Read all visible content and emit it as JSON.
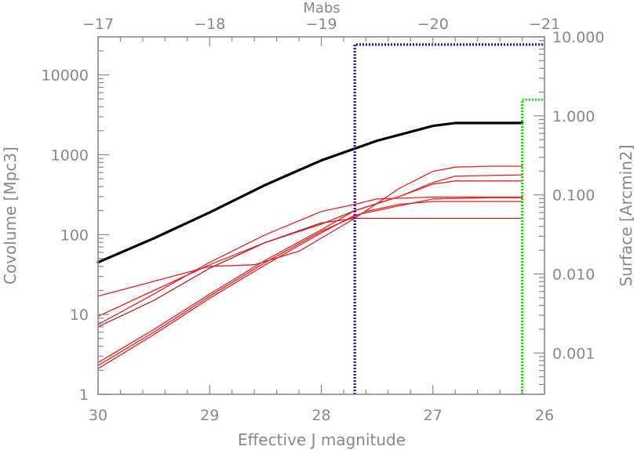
{
  "chart_data": {
    "type": "line",
    "title": "",
    "xlabel": "Effective J magnitude",
    "ylabel": "Covolume [Mpc3]",
    "top_xlabel": "Mabs",
    "right_ylabel": "Surface [Arcmin2]",
    "x_range": [
      30,
      26
    ],
    "y_range": [
      1,
      30000
    ],
    "y_scale": "log",
    "top_x_range": [
      -17,
      -21
    ],
    "right_y_range": [
      0.0003,
      10.0
    ],
    "right_y_scale": "log",
    "grid": false,
    "x_ticks": [
      {
        "value": 30,
        "label": "30"
      },
      {
        "value": 29,
        "label": "29"
      },
      {
        "value": 28,
        "label": "28"
      },
      {
        "value": 27,
        "label": "27"
      },
      {
        "value": 26,
        "label": "26"
      }
    ],
    "y_ticks": [
      {
        "value": 1,
        "label": "1"
      },
      {
        "value": 10,
        "label": "10"
      },
      {
        "value": 100,
        "label": "100"
      },
      {
        "value": 1000,
        "label": "1000"
      },
      {
        "value": 10000,
        "label": "10000"
      }
    ],
    "top_x_ticks": [
      {
        "value": -17,
        "label": "−17"
      },
      {
        "value": -18,
        "label": "−18"
      },
      {
        "value": -19,
        "label": "−19"
      },
      {
        "value": -20,
        "label": "−20"
      },
      {
        "value": -21,
        "label": "−21"
      }
    ],
    "right_y_ticks": [
      {
        "value": 0.001,
        "label": "0.001"
      },
      {
        "value": 0.01,
        "label": "0.010"
      },
      {
        "value": 0.1,
        "label": "0.100"
      },
      {
        "value": 1.0,
        "label": "1.000"
      },
      {
        "value": 10.0,
        "label": "10.000"
      }
    ],
    "series": [
      {
        "color": "#000000",
        "width": 3.2,
        "x": [
          30.0,
          29.5,
          29.0,
          28.5,
          28.0,
          27.5,
          27.0,
          26.8,
          26.5,
          26.2
        ],
        "y": [
          45,
          90,
          190,
          420,
          850,
          1500,
          2300,
          2500,
          2500,
          2500
        ]
      },
      {
        "color": "#e82020",
        "width": 1.3,
        "x": [
          30.0,
          29.5,
          29.0,
          28.6,
          28.2,
          27.7,
          27.3,
          27.0,
          26.8,
          26.5,
          26.2
        ],
        "y": [
          17,
          26,
          40,
          42,
          62,
          160,
          380,
          620,
          700,
          720,
          720
        ]
      },
      {
        "color": "#e82020",
        "width": 1.3,
        "x": [
          30.0,
          29.5,
          29.0,
          28.5,
          28.0,
          27.7,
          27.3,
          27.0,
          26.8,
          26.5,
          26.2
        ],
        "y": [
          9.5,
          20,
          42,
          80,
          135,
          200,
          300,
          450,
          540,
          550,
          560
        ]
      },
      {
        "color": "#e82020",
        "width": 1.3,
        "x": [
          30.0,
          29.5,
          29.0,
          28.5,
          28.0,
          27.7,
          27.5,
          27.0,
          26.5,
          26.2
        ],
        "y": [
          7.5,
          18,
          45,
          100,
          195,
          240,
          280,
          295,
          295,
          295
        ]
      },
      {
        "color": "#b0202a",
        "width": 1.3,
        "x": [
          30.0,
          29.5,
          29.0,
          28.5,
          28.0,
          27.7,
          27.0,
          26.5,
          26.2
        ],
        "y": [
          7.0,
          15,
          38,
          80,
          140,
          160,
          160,
          160,
          160
        ]
      },
      {
        "color": "#e82020",
        "width": 1.3,
        "x": [
          30.0,
          29.5,
          29.0,
          28.5,
          28.0,
          27.7,
          27.3,
          27.0,
          26.8,
          26.5,
          26.2
        ],
        "y": [
          2.5,
          6.5,
          18,
          48,
          115,
          200,
          300,
          430,
          470,
          470,
          470
        ]
      },
      {
        "color": "#e82020",
        "width": 1.3,
        "x": [
          30.0,
          29.5,
          29.0,
          28.5,
          28.0,
          27.6,
          27.3,
          27.0,
          26.5,
          26.2
        ],
        "y": [
          2.3,
          6.0,
          17,
          45,
          110,
          195,
          240,
          260,
          260,
          260
        ]
      },
      {
        "color": "#e82020",
        "width": 1.3,
        "x": [
          30.0,
          29.5,
          29.0,
          28.5,
          28.0,
          27.7,
          27.3,
          27.0,
          26.5,
          26.2
        ],
        "y": [
          2.1,
          5.6,
          16,
          42,
          105,
          175,
          230,
          280,
          290,
          290
        ]
      }
    ],
    "surface_outlines": [
      {
        "color": "#1010d0",
        "x_start": 27.7,
        "x_end": 26.0,
        "surface": 8.0
      },
      {
        "color": "#20d020",
        "x_start": 26.2,
        "x_end": 26.0,
        "surface": 1.6
      }
    ]
  }
}
